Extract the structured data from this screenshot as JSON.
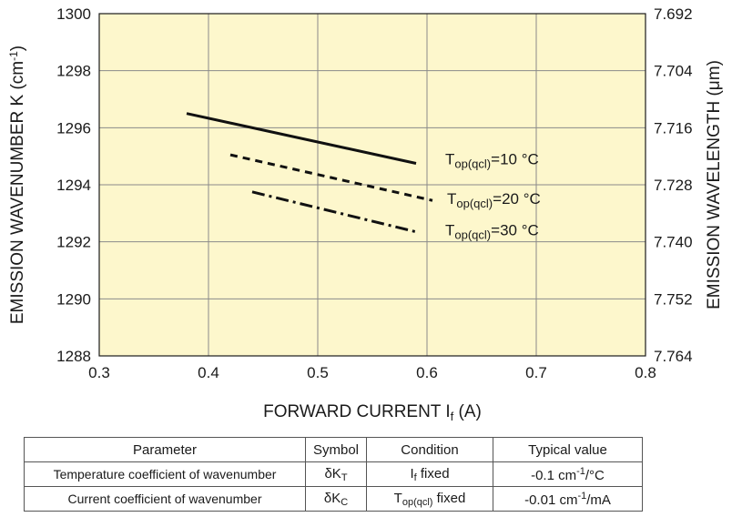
{
  "chart_data": {
    "type": "line",
    "xlabel_main": "FORWARD CURRENT I",
    "xlabel_sub": "f",
    "xlabel_end": " (A)",
    "ylabel_left": "EMISSION WAVENUMBER K (cm",
    "ylabel_left_sup": "-1",
    "ylabel_left_end": ")",
    "ylabel_right": "EMISSION WAVELENGTH (μm)",
    "xlim": [
      0.3,
      0.8
    ],
    "ylim": [
      1288,
      1300
    ],
    "x_ticks": [
      "0.3",
      "0.4",
      "0.5",
      "0.6",
      "0.7",
      "0.8"
    ],
    "y_ticks": [
      "1288",
      "1290",
      "1292",
      "1294",
      "1296",
      "1298",
      "1300"
    ],
    "y_right_ticks": [
      "7.764",
      "7.752",
      "7.740",
      "7.728",
      "7.716",
      "7.704",
      "7.692"
    ],
    "grid": true,
    "background": "#fdf7cc",
    "series": [
      {
        "name": "T_op(qcl)=10 °C",
        "label_main": "T",
        "label_sub": "op(qcl)",
        "label_end": "=10 °C",
        "style": "solid",
        "x": [
          0.38,
          0.59
        ],
        "y": [
          1296.5,
          1294.75
        ]
      },
      {
        "name": "T_op(qcl)=20 °C",
        "label_main": "T",
        "label_sub": "op(qcl)",
        "label_end": "=20 °C",
        "style": "dashed",
        "x": [
          0.42,
          0.605
        ],
        "y": [
          1295.05,
          1293.45
        ]
      },
      {
        "name": "T_op(qcl)=30 °C",
        "label_main": "T",
        "label_sub": "op(qcl)",
        "label_end": "=30 °C",
        "style": "dashdot",
        "x": [
          0.44,
          0.59
        ],
        "y": [
          1293.75,
          1292.35
        ]
      }
    ]
  },
  "table": {
    "headers": [
      "Parameter",
      "Symbol",
      "Condition",
      "Typical value"
    ],
    "rows": [
      {
        "parameter": "Temperature coefficient of wavenumber",
        "symbol_main": "δK",
        "symbol_sub": "T",
        "cond_main": "I",
        "cond_sub": "f",
        "cond_end": " fixed",
        "value_main": "-0.1 cm",
        "value_sup": "-1",
        "value_end": "/°C"
      },
      {
        "parameter": "Current coefficient of wavenumber",
        "symbol_main": "δK",
        "symbol_sub": "C",
        "cond_main": "T",
        "cond_sub": "op(qcl)",
        "cond_end": " fixed",
        "value_main": "-0.01 cm",
        "value_sup": "-1",
        "value_end": "/mA"
      }
    ]
  }
}
